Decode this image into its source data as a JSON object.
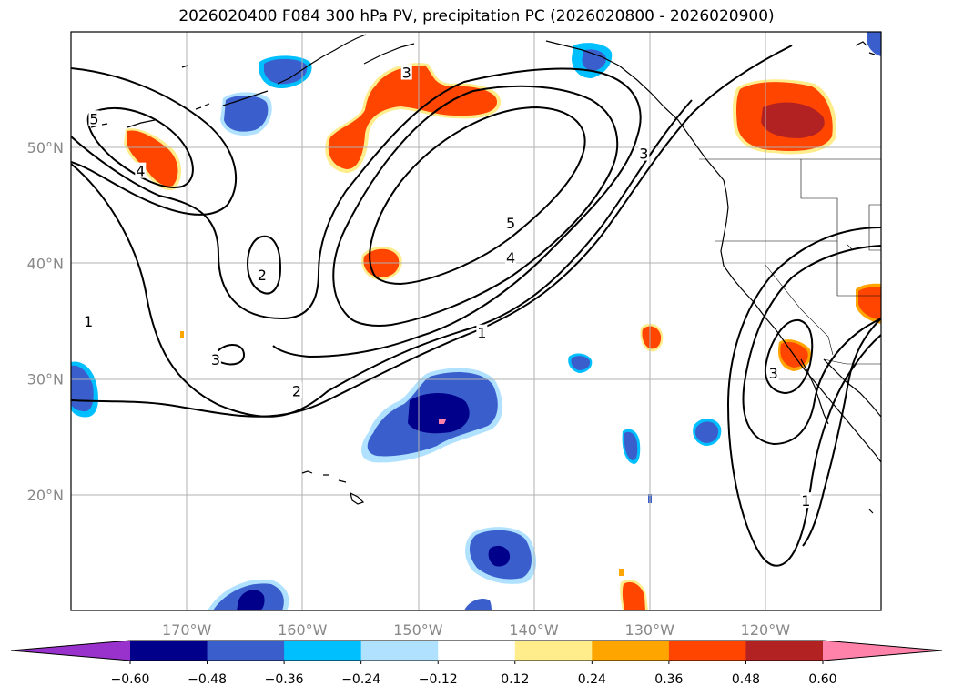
{
  "title": "2026020400 F084 300 hPa PV, precipitation PC (2026020800 - 2026020900)",
  "map": {
    "lon_range": [
      -180,
      -110
    ],
    "lat_range": [
      10,
      60
    ],
    "lon_ticks": [
      {
        "lon": -170,
        "label": "170°W"
      },
      {
        "lon": -160,
        "label": "160°W"
      },
      {
        "lon": -150,
        "label": "150°W"
      },
      {
        "lon": -140,
        "label": "140°W"
      },
      {
        "lon": -130,
        "label": "130°W"
      },
      {
        "lon": -120,
        "label": "120°W"
      }
    ],
    "lat_ticks": [
      {
        "lat": 50,
        "label": "50°N"
      },
      {
        "lat": 40,
        "label": "40°N"
      },
      {
        "lat": 30,
        "label": "30°N"
      },
      {
        "lat": 20,
        "label": "20°N"
      }
    ],
    "gridlines": true
  },
  "pv_contour_labels": [
    {
      "text": "5",
      "lon": -178,
      "lat": 52.5
    },
    {
      "text": "4",
      "lon": -174,
      "lat": 48
    },
    {
      "text": "3",
      "lon": -151,
      "lat": 56.5
    },
    {
      "text": "3",
      "lon": -130.5,
      "lat": 49.5
    },
    {
      "text": "5",
      "lon": -142,
      "lat": 43.5
    },
    {
      "text": "4",
      "lon": -142,
      "lat": 40.5
    },
    {
      "text": "2",
      "lon": -163.5,
      "lat": 39
    },
    {
      "text": "1",
      "lon": -178.5,
      "lat": 35
    },
    {
      "text": "1",
      "lon": -144.5,
      "lat": 34
    },
    {
      "text": "3",
      "lon": -167.5,
      "lat": 31.7
    },
    {
      "text": "2",
      "lon": -160.5,
      "lat": 29
    },
    {
      "text": "3",
      "lon": -119.3,
      "lat": 30.5
    },
    {
      "text": "1",
      "lon": -116.5,
      "lat": 19.5
    }
  ],
  "colorbar": {
    "levels": [
      "−0.60",
      "−0.48",
      "−0.36",
      "−0.24",
      "−0.12",
      "0.12",
      "0.24",
      "0.36",
      "0.48",
      "0.60"
    ],
    "colors": [
      "#9932cc",
      "#00008b",
      "#3a5fcd",
      "#00bfff",
      "#b0e2ff",
      "#ffffff",
      "#ffec8b",
      "#ffa500",
      "#ff4500",
      "#b22222",
      "#ff82ab"
    ]
  }
}
